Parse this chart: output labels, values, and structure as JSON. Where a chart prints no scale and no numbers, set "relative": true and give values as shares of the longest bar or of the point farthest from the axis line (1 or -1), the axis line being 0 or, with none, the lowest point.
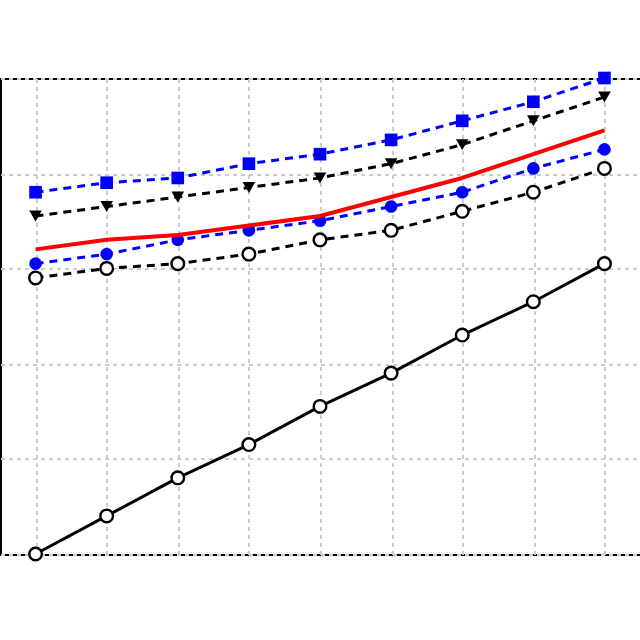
{
  "chart_data": {
    "type": "line",
    "relative": true,
    "grid": true,
    "categories": [
      null,
      null,
      null,
      null,
      null,
      null,
      null,
      null,
      null
    ],
    "series": [
      {
        "color": "#000000",
        "marker": "circle",
        "line_style": "dashed",
        "values": [
          0.58,
          0.6,
          0.61,
          0.63,
          0.66,
          0.68,
          0.72,
          0.76,
          0.81
        ]
      },
      {
        "color": "#0000ff",
        "marker": "circle",
        "line_style": "dashed",
        "values": [
          0.61,
          0.63,
          0.66,
          0.68,
          0.7,
          0.73,
          0.76,
          0.81,
          0.85
        ]
      },
      {
        "color": "#ff0000",
        "marker": "none",
        "line_style": "solid",
        "values": [
          0.64,
          0.66,
          0.67,
          0.69,
          0.71,
          0.75,
          0.79,
          0.84,
          0.89
        ]
      },
      {
        "color": "#000000",
        "marker": "triangle",
        "line_style": "dashed",
        "values": [
          0.71,
          0.73,
          0.75,
          0.77,
          0.79,
          0.82,
          0.86,
          0.91,
          0.96
        ]
      },
      {
        "color": "#0000ff",
        "marker": "square",
        "line_style": "dashed",
        "values": [
          0.76,
          0.78,
          0.79,
          0.82,
          0.84,
          0.87,
          0.91,
          0.95,
          1
        ]
      },
      {
        "color": "#000000",
        "marker": "circle",
        "line_style": "solid",
        "values": [
          0,
          0.08,
          0.16,
          0.23,
          0.31,
          0.38,
          0.46,
          0.53,
          0.61
        ]
      }
    ]
  }
}
